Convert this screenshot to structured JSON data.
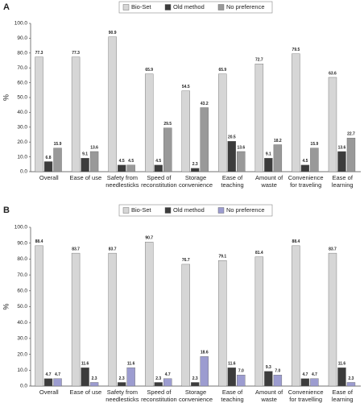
{
  "chart_data": [
    {
      "type": "bar",
      "title": "A",
      "ylabel": "%",
      "grid": false,
      "legend": "top",
      "categories": [
        [
          "Overall"
        ],
        [
          "Ease of use"
        ],
        [
          "Safety from",
          "needlesticks"
        ],
        [
          "Speed of",
          "reconstitution"
        ],
        [
          "Storage",
          "convenience"
        ],
        [
          "Ease of",
          "teaching"
        ],
        [
          "Amount of",
          "waste"
        ],
        [
          "Convenience",
          "for traveling"
        ],
        [
          "Ease of",
          "learning"
        ]
      ],
      "series": [
        {
          "name": "Bio-Set",
          "color": "#d6d6d6",
          "values": [
            77.3,
            77.3,
            90.9,
            65.9,
            54.5,
            65.9,
            72.7,
            79.5,
            63.6
          ]
        },
        {
          "name": "Old method",
          "color": "#3c3c3c",
          "values": [
            6.8,
            9.1,
            4.5,
            4.5,
            2.3,
            20.5,
            9.1,
            4.5,
            13.6
          ]
        },
        {
          "name": "No preference",
          "color": "#999999",
          "values": [
            15.9,
            13.6,
            4.5,
            29.5,
            43.2,
            13.6,
            18.2,
            15.9,
            22.7
          ]
        }
      ],
      "ylim": [
        0,
        100
      ],
      "yticks": [
        {
          "value": 0,
          "label": "0.0"
        },
        {
          "value": 10,
          "label": "10.0"
        },
        {
          "value": 20,
          "label": "20.0"
        },
        {
          "value": 30,
          "label": "30.0"
        },
        {
          "value": 40,
          "label": "40.0"
        },
        {
          "value": 50,
          "label": "50.0"
        },
        {
          "value": 60,
          "label": "60.0"
        },
        {
          "value": 70,
          "label": "70.0"
        },
        {
          "value": 80,
          "label": "80.0"
        },
        {
          "value": 90,
          "label": "90.0"
        },
        {
          "value": 100,
          "label": "100.0"
        }
      ]
    },
    {
      "type": "bar",
      "title": "B",
      "ylabel": "%",
      "grid": false,
      "legend": "top",
      "categories": [
        [
          "Overall"
        ],
        [
          "Ease of use"
        ],
        [
          "Safety from",
          "needlesticks"
        ],
        [
          "Speed of",
          "reconstitution"
        ],
        [
          "Storage",
          "convenience"
        ],
        [
          "Ease of",
          "teaching"
        ],
        [
          "Amount of",
          "waste"
        ],
        [
          "Convenience",
          "for travelling"
        ],
        [
          "Ease of",
          "learning"
        ]
      ],
      "series": [
        {
          "name": "Bio-Set",
          "color": "#d6d6d6",
          "values": [
            88.4,
            83.7,
            83.7,
            90.7,
            76.7,
            79.1,
            81.4,
            88.4,
            83.7
          ]
        },
        {
          "name": "Old method",
          "color": "#3c3c3c",
          "values": [
            4.7,
            11.6,
            2.3,
            2.3,
            2.3,
            11.6,
            9.3,
            4.7,
            11.6
          ]
        },
        {
          "name": "No preference",
          "color": "#9c9cd0",
          "values": [
            4.7,
            2.3,
            11.6,
            4.7,
            18.6,
            7.0,
            7.0,
            4.7,
            2.3
          ],
          "value_labels": [
            "4.7",
            "2.3",
            "11.6",
            "4.7",
            "18.6",
            "7.0",
            "7.0",
            "4.7",
            "2.3"
          ]
        }
      ],
      "ylim": [
        0,
        100
      ],
      "yticks": [
        {
          "value": 0,
          "label": "0.0"
        },
        {
          "value": 10,
          "label": "10.0"
        },
        {
          "value": 20,
          "label": "20.0"
        },
        {
          "value": 30,
          "label": "30.0"
        },
        {
          "value": 40,
          "label": "40.0"
        },
        {
          "value": 50,
          "label": "50.0"
        },
        {
          "value": 60,
          "label": "60.0"
        },
        {
          "value": 70,
          "label": "70.0"
        },
        {
          "value": 80,
          "label": "80.0"
        },
        {
          "value": 90,
          "label": "90.0"
        },
        {
          "value": 100,
          "label": "100.0"
        }
      ]
    }
  ]
}
